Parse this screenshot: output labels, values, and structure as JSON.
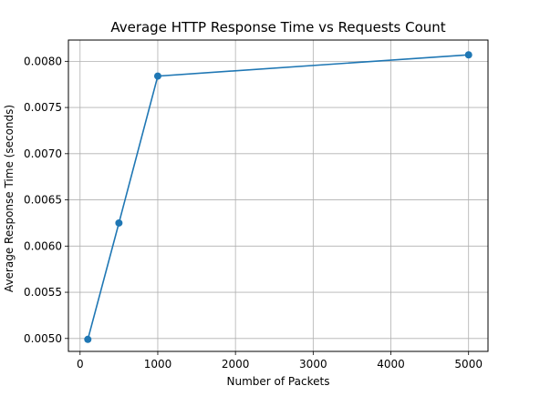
{
  "chart_data": {
    "type": "line",
    "title": "Average HTTP Response Time vs Requests Count",
    "xlabel": "Number of Packets",
    "ylabel": "Average Response Time (seconds)",
    "xlim": [
      -150,
      5250
    ],
    "ylim": [
      0.00486,
      0.00823
    ],
    "xticks": [
      0,
      1000,
      2000,
      3000,
      4000,
      5000
    ],
    "xtick_labels": [
      "0",
      "1000",
      "2000",
      "3000",
      "4000",
      "5000"
    ],
    "yticks": [
      0.005,
      0.0055,
      0.006,
      0.0065,
      0.007,
      0.0075,
      0.008
    ],
    "ytick_labels": [
      "0.0050",
      "0.0055",
      "0.0060",
      "0.0065",
      "0.0070",
      "0.0075",
      "0.0080"
    ],
    "grid": true,
    "series": [
      {
        "color": "#1f77b4",
        "marker": "circle",
        "x": [
          100,
          500,
          1000,
          5000
        ],
        "y": [
          0.00499,
          0.00625,
          0.00784,
          0.00807
        ]
      }
    ]
  }
}
